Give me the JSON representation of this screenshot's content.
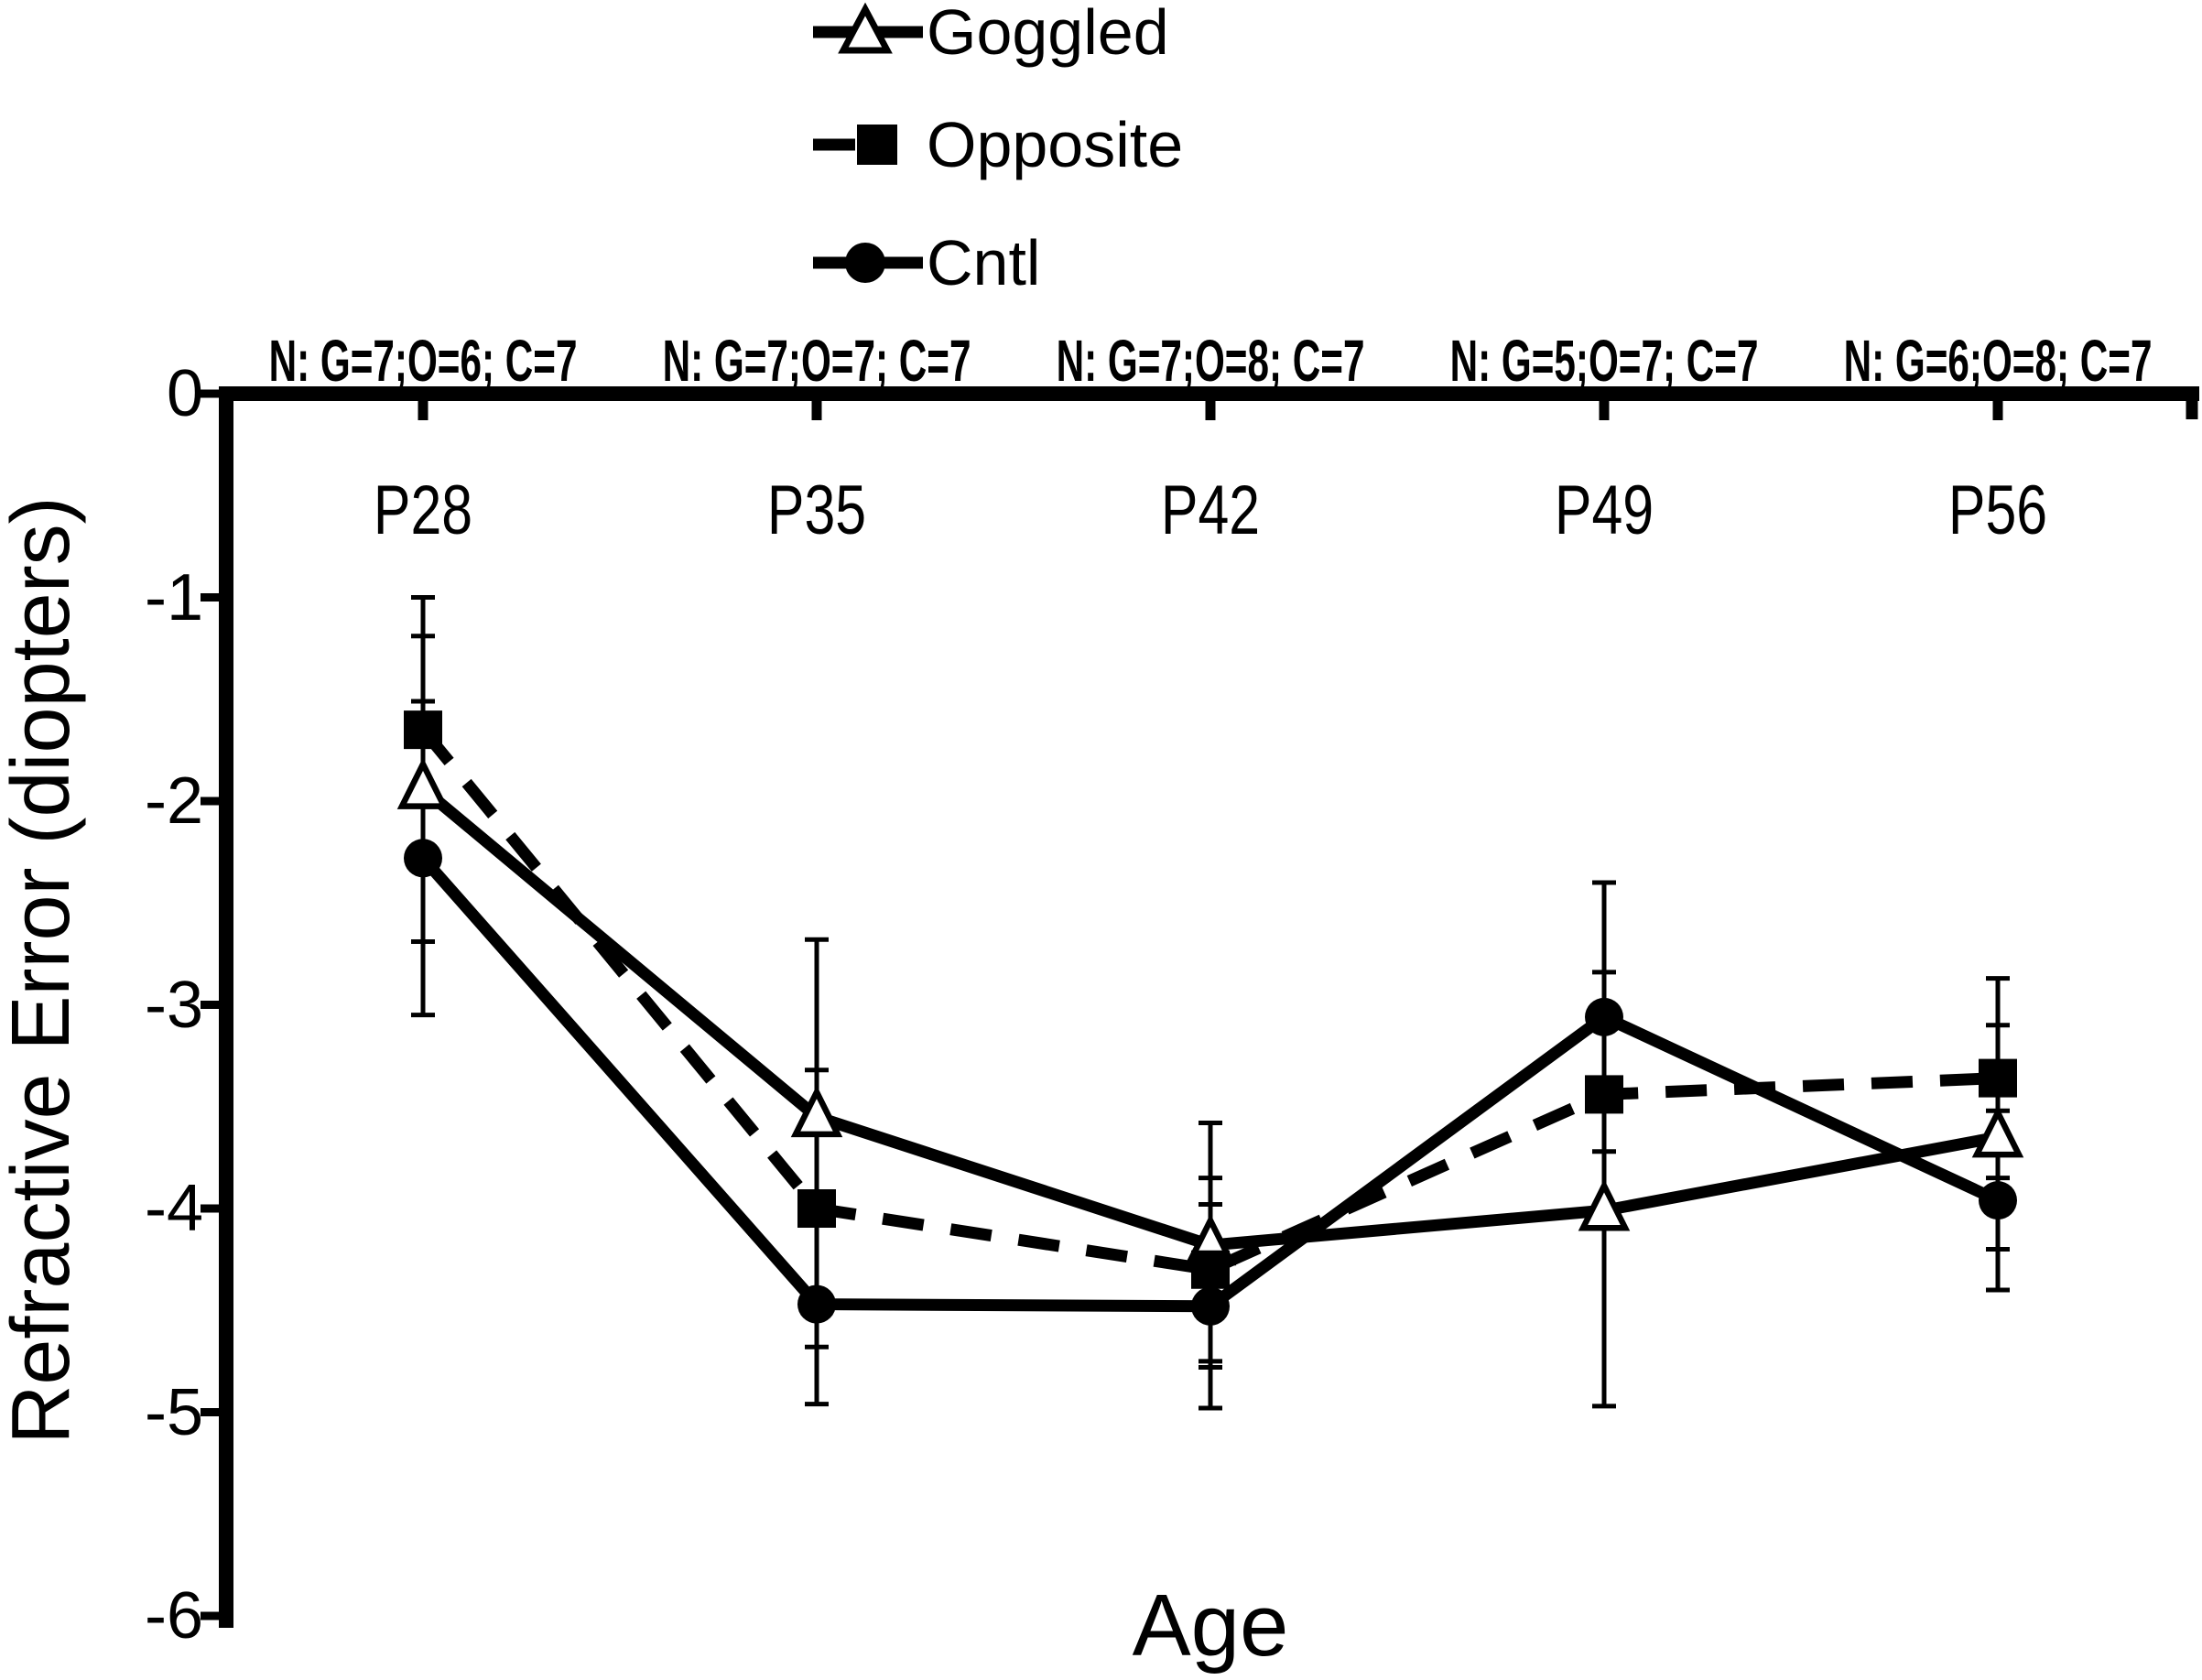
{
  "chart_data": {
    "type": "line",
    "title": "",
    "xlabel": "Age",
    "ylabel": "Refractive Error (diopters)",
    "categories": [
      "P28",
      "P35",
      "P42",
      "P49",
      "P56"
    ],
    "ytick_labels": [
      "0",
      "-1",
      "-2",
      "-3",
      "-4",
      "-5",
      "-6"
    ],
    "ytick_values": [
      0,
      -1,
      -2,
      -3,
      -4,
      -5,
      -6
    ],
    "ylim": [
      -6,
      0
    ],
    "grid": false,
    "legend_position": "top-center",
    "annotations": [
      "N: G=7;O=6; C=7",
      "N: G=7;O=7; C=7",
      "N: G=7;O=8; C=7",
      "N: G=5;O=7; C=7",
      "N: G=6;O=8; C=7"
    ],
    "series": [
      {
        "name": "Goggled",
        "marker": "open-triangle",
        "line_style": "solid",
        "values": [
          -1.94,
          -3.55,
          -4.18,
          -4.01,
          -3.65
        ],
        "errors": [
          0.75,
          0.87,
          0.6,
          0.96,
          0.55
        ]
      },
      {
        "name": "Opposite",
        "marker": "filled-square",
        "line_style": "dashed",
        "values": [
          -1.65,
          -4.0,
          -4.3,
          -3.44,
          -3.36
        ],
        "errors": [
          0.65,
          0.68,
          0.45,
          0.6,
          0.49
        ]
      },
      {
        "name": "Cntl",
        "marker": "filled-circle",
        "line_style": "solid",
        "values": [
          -2.28,
          -4.47,
          -4.48,
          -3.06,
          -3.96
        ],
        "errors": [
          0.77,
          0.49,
          0.5,
          0.66,
          0.44
        ]
      }
    ],
    "colors": {
      "foreground": "#000000",
      "background": "#ffffff"
    }
  }
}
